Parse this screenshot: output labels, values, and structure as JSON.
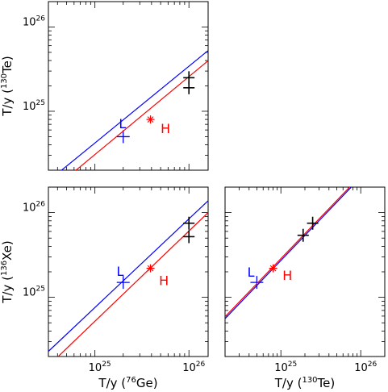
{
  "chart_data": [
    {
      "type": "scatter",
      "panel": "top-left",
      "x_scale": "log",
      "y_scale": "log",
      "xlim": [
        3.2e+24,
        1.6e+26
      ],
      "ylim": [
        2e+24,
        2e+26
      ],
      "y_ticks": [
        {
          "v": 1e+25,
          "base": "10",
          "exp": "25"
        },
        {
          "v": 1e+26,
          "base": "10",
          "exp": "26"
        }
      ],
      "x_ticks": [],
      "ylabel": {
        "pre": "T/y (",
        "sup": "130",
        "post": "Te)"
      },
      "xlabel": null,
      "series": [
        {
          "name": "L",
          "color": "#0000ff",
          "line": [
            [
              3.2e+24,
              1.49e+24
            ],
            [
              1.6e+26,
              5.25e+25
            ]
          ],
          "points": [
            [
              2e+25,
              5e+24
            ]
          ],
          "label": {
            "text": "L",
            "x": 1.8e+25,
            "y": 6.3e+24
          }
        },
        {
          "name": "H",
          "color": "#ff0000",
          "line": [
            [
              3.2e+24,
              1.07e+24
            ],
            [
              1.6e+26,
              3.98e+25
            ]
          ],
          "points": [
            [
              3.9e+25,
              8e+24
            ]
          ],
          "label": {
            "text": "H",
            "x": 5e+25,
            "y": 5.5e+24
          }
        },
        {
          "name": "",
          "color": "#000000",
          "line": null,
          "points": [
            [
              1e+26,
              2.5e+25
            ],
            [
              1e+26,
              1.9e+25
            ]
          ]
        }
      ]
    },
    {
      "type": "scatter",
      "panel": "bottom-left",
      "x_scale": "log",
      "y_scale": "log",
      "xlim": [
        3.2e+24,
        1.6e+26
      ],
      "ylim": [
        2e+24,
        2e+26
      ],
      "y_ticks": [
        {
          "v": 1e+25,
          "base": "10",
          "exp": "25"
        },
        {
          "v": 1e+26,
          "base": "10",
          "exp": "26"
        }
      ],
      "x_ticks": [
        {
          "v": 1e+25,
          "base": "10",
          "exp": "25"
        },
        {
          "v": 1e+26,
          "base": "10",
          "exp": "26"
        }
      ],
      "ylabel": {
        "pre": "T/y (",
        "sup": "136",
        "post": "Xe)"
      },
      "xlabel": {
        "pre": "T/y (",
        "sup": "76",
        "post": "Ge)"
      },
      "series": [
        {
          "name": "L",
          "color": "#0000ff",
          "line": [
            [
              3.2e+24,
              2.3e+24
            ],
            [
              1.6e+26,
              1.38e+26
            ]
          ],
          "points": [
            [
              2e+25,
              1.5e+25
            ]
          ],
          "label": {
            "text": "L",
            "x": 1.7e+25,
            "y": 1.8e+25
          }
        },
        {
          "name": "H",
          "color": "#ff0000",
          "line": [
            [
              3.2e+24,
              1.55e+24
            ],
            [
              1.6e+26,
              1e+26
            ]
          ],
          "points": [
            [
              3.9e+25,
              2.2e+25
            ]
          ],
          "label": {
            "text": "H",
            "x": 4.8e+25,
            "y": 1.4e+25
          }
        },
        {
          "name": "",
          "color": "#000000",
          "line": null,
          "points": [
            [
              1e+26,
              7.5e+25
            ],
            [
              1e+26,
              5.2e+25
            ]
          ]
        }
      ]
    },
    {
      "type": "scatter",
      "panel": "bottom-right",
      "x_scale": "log",
      "y_scale": "log",
      "xlim": [
        2e+24,
        2e+26
      ],
      "ylim": [
        2e+24,
        2e+26
      ],
      "y_ticks": [],
      "x_ticks": [
        {
          "v": 1e+25,
          "base": "10",
          "exp": "25"
        },
        {
          "v": 1e+26,
          "base": "10",
          "exp": "26"
        }
      ],
      "ylabel": null,
      "xlabel": {
        "pre": "T/y (",
        "sup": "130",
        "post": "Te)"
      },
      "series": [
        {
          "name": "L",
          "color": "#0000ff",
          "line": [
            [
              2e+24,
              5.6e+24
            ],
            [
              8e+25,
              2.1e+26
            ]
          ],
          "points": [
            [
              5e+24,
              1.5e+25
            ]
          ],
          "label": {
            "text": "L",
            "x": 3.8e+24,
            "y": 1.75e+25
          }
        },
        {
          "name": "H",
          "color": "#ff0000",
          "line": [
            [
              2e+24,
              5.9e+24
            ],
            [
              8e+25,
              2.2e+26
            ]
          ],
          "points": [
            [
              8e+24,
              2.2e+25
            ]
          ],
          "label": {
            "text": "H",
            "x": 1.05e+25,
            "y": 1.6e+25
          }
        },
        {
          "name": "",
          "color": "#000000",
          "line": null,
          "points": [
            [
              1.9e+25,
              5.4e+25
            ],
            [
              2.5e+25,
              7.5e+25
            ]
          ]
        }
      ]
    }
  ]
}
